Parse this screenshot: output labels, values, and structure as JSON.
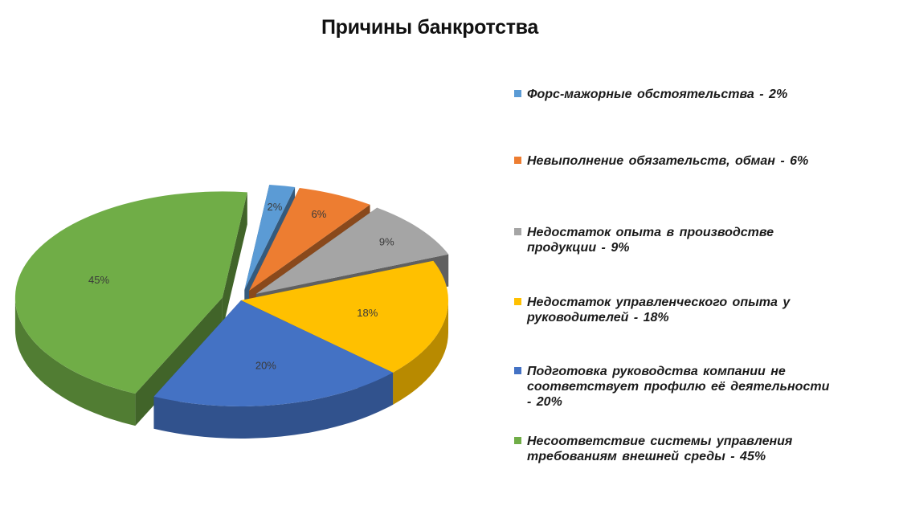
{
  "chart_data": {
    "type": "pie",
    "title": "Причины банкротства",
    "slices": [
      {
        "label": "Форс-мажорные  обстоятельства - 2%",
        "value": 2,
        "value_label": "2%",
        "color": "#5B9BD5",
        "exploded": true
      },
      {
        "label": "Невыполнение  обязательств,  обман - 6%",
        "value": 6,
        "value_label": "6%",
        "color": "#ED7D31",
        "exploded": true
      },
      {
        "label": "Недостаток опыта в производстве продукции - 9%",
        "value": 9,
        "value_label": "9%",
        "color": "#A5A5A5",
        "exploded": true
      },
      {
        "label": "Недостаток управленческого  опыта у руководителей - 18%",
        "value": 18,
        "value_label": "18%",
        "color": "#FFC000",
        "exploded": false
      },
      {
        "label": "Подготовка руководства компании не соответствует профилю её деятельности - 20%",
        "value": 20,
        "value_label": "20%",
        "color": "#4472C4",
        "exploded": false
      },
      {
        "label": "Несоответствие системы управления требованиям внешней среды - 45%",
        "value": 45,
        "value_label": "45%",
        "color": "#70AD47",
        "exploded": true
      }
    ],
    "legend_position": "right",
    "style": "3d"
  }
}
